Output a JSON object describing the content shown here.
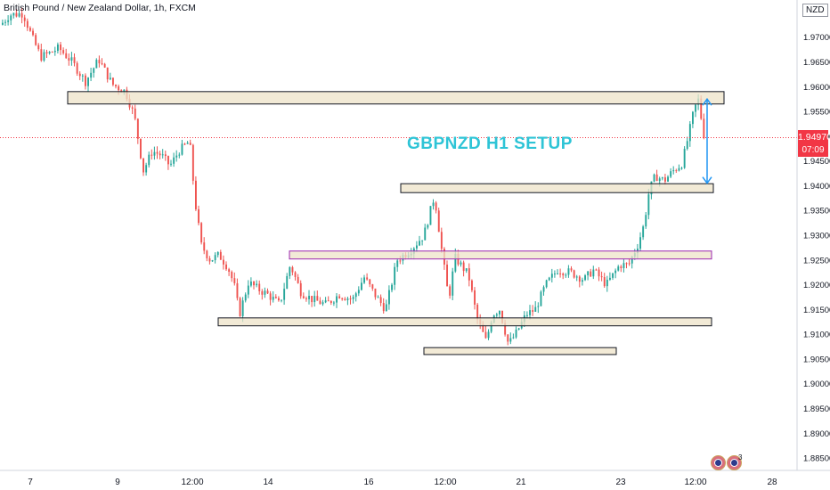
{
  "chart_data": {
    "type": "candlestick",
    "title": "British Pound / New Zealand Dollar, 1h, FXCM",
    "annotation": "GBPNZD H1 SETUP",
    "currency": "NZD",
    "last_price": "1.94970",
    "countdown": "07:09",
    "ylim": [
      1.8825,
      1.9775
    ],
    "y_ticks": [
      "1.97000",
      "1.96500",
      "1.96000",
      "1.95500",
      "1.95000",
      "1.94500",
      "1.94000",
      "1.93500",
      "1.93000",
      "1.92500",
      "1.92000",
      "1.91500",
      "1.91000",
      "1.90500",
      "1.90000",
      "1.89500",
      "1.89000",
      "1.88500"
    ],
    "x_ticks": [
      "7",
      "9",
      "12:00",
      "14",
      "16",
      "12:00",
      "21",
      "23",
      "12:00",
      "28"
    ],
    "close_path": [
      [
        0,
        1.9725
      ],
      [
        10,
        1.9745
      ],
      [
        25,
        1.9748
      ],
      [
        35,
        1.97
      ],
      [
        45,
        1.966
      ],
      [
        55,
        1.9668
      ],
      [
        65,
        1.9678
      ],
      [
        80,
        1.965
      ],
      [
        95,
        1.961
      ],
      [
        110,
        1.9655
      ],
      [
        125,
        1.9605
      ],
      [
        140,
        1.959
      ],
      [
        150,
        1.954
      ],
      [
        160,
        1.943
      ],
      [
        170,
        1.947
      ],
      [
        180,
        1.9462
      ],
      [
        190,
        1.944
      ],
      [
        200,
        1.947
      ],
      [
        212,
        1.949
      ],
      [
        218,
        1.937
      ],
      [
        225,
        1.928
      ],
      [
        235,
        1.925
      ],
      [
        245,
        1.926
      ],
      [
        255,
        1.9235
      ],
      [
        262,
        1.92
      ],
      [
        268,
        1.914
      ],
      [
        278,
        1.9205
      ],
      [
        290,
        1.919
      ],
      [
        300,
        1.918
      ],
      [
        313,
        1.916
      ],
      [
        325,
        1.924
      ],
      [
        337,
        1.9185
      ],
      [
        350,
        1.917
      ],
      [
        365,
        1.916
      ],
      [
        380,
        1.918
      ],
      [
        395,
        1.917
      ],
      [
        408,
        1.9215
      ],
      [
        420,
        1.918
      ],
      [
        432,
        1.915
      ],
      [
        445,
        1.925
      ],
      [
        460,
        1.927
      ],
      [
        475,
        1.93
      ],
      [
        487,
        1.938
      ],
      [
        495,
        1.927
      ],
      [
        503,
        1.917
      ],
      [
        510,
        1.9255
      ],
      [
        525,
        1.922
      ],
      [
        535,
        1.913
      ],
      [
        545,
        1.9085
      ],
      [
        552,
        1.914
      ],
      [
        560,
        1.915
      ],
      [
        570,
        1.908
      ],
      [
        578,
        1.91
      ],
      [
        590,
        1.914
      ],
      [
        600,
        1.915
      ],
      [
        612,
        1.92
      ],
      [
        625,
        1.923
      ],
      [
        640,
        1.9225
      ],
      [
        655,
        1.921
      ],
      [
        665,
        1.923
      ],
      [
        680,
        1.92
      ],
      [
        695,
        1.924
      ],
      [
        705,
        1.924
      ],
      [
        715,
        1.928
      ],
      [
        722,
        1.932
      ],
      [
        728,
        1.939
      ],
      [
        735,
        1.942
      ],
      [
        745,
        1.941
      ],
      [
        755,
        1.943
      ],
      [
        765,
        1.9445
      ],
      [
        772,
        1.95
      ],
      [
        778,
        1.955
      ],
      [
        783,
        1.9575
      ],
      [
        787,
        1.953
      ],
      [
        790,
        1.9497
      ]
    ],
    "zones": [
      {
        "x1": 76,
        "x2": 813,
        "top": 1.959,
        "bottom": 1.9565,
        "style": "dark"
      },
      {
        "x1": 450,
        "x2": 801,
        "top": 1.9404,
        "bottom": 1.9386,
        "style": "dark"
      },
      {
        "x1": 325,
        "x2": 799,
        "top": 1.9268,
        "bottom": 1.9252,
        "style": "purple"
      },
      {
        "x1": 245,
        "x2": 799,
        "top": 1.9133,
        "bottom": 1.9117,
        "style": "dark"
      },
      {
        "x1": 476,
        "x2": 692,
        "top": 1.9073,
        "bottom": 1.9059,
        "style": "dark"
      }
    ],
    "grid": false,
    "colors": {
      "up": "#26a69a",
      "down": "#ef5350",
      "zone_fill": "#ede3c8",
      "arrow": "#2196f3",
      "price_line": "#f23645"
    }
  }
}
